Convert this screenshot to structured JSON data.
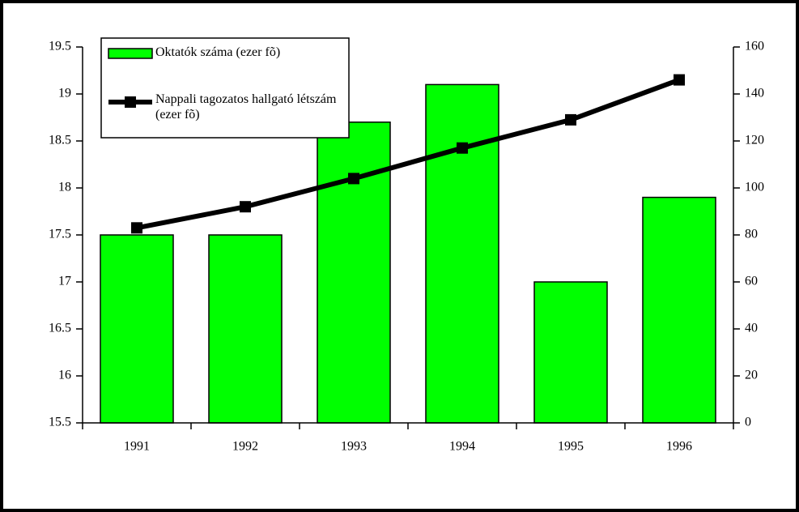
{
  "chart_data": {
    "type": "bar_line",
    "categories": [
      "1991",
      "1992",
      "1993",
      "1994",
      "1995",
      "1996"
    ],
    "series": [
      {
        "name": "Oktatók száma (ezer fõ)",
        "type": "bar",
        "color": "#00ff00",
        "values": [
          17.5,
          17.5,
          18.7,
          19.1,
          17.0,
          17.9
        ]
      },
      {
        "name": "Nappali tagozatos hallgató létszám (ezer fõ)",
        "type": "line",
        "color": "#000000",
        "axis": "y2",
        "values": [
          83,
          92,
          104,
          117,
          129,
          146
        ]
      }
    ],
    "ylim": [
      15.5,
      19.5
    ],
    "yticks": [
      15.5,
      16,
      16.5,
      17,
      17.5,
      18,
      18.5,
      19,
      19.5
    ],
    "y2lim": [
      0,
      160
    ],
    "y2ticks": [
      0,
      20,
      40,
      60,
      80,
      100,
      120,
      140,
      160
    ],
    "legend": "top-left"
  }
}
